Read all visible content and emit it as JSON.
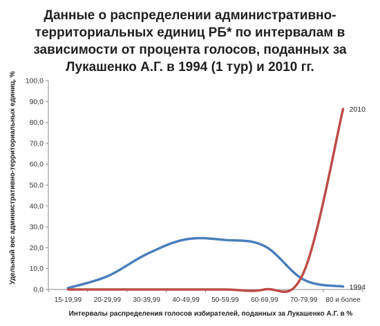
{
  "chart_data": {
    "type": "line",
    "title": [
      "Данные о распределении административно-",
      "территориальных единиц РБ* по интервалам в",
      "зависимости от процента голосов, поданных за",
      "Лукашенко А.Г. в 1994 (1 тур) и 2010 гг."
    ],
    "xlabel": "Интервалы распределения голосов избирателей, поданных за Лукашенко А.Г. в %",
    "ylabel": "Удельный вес административно-территориальных единиц, %",
    "categories": [
      "15-19,99",
      "20-29,99",
      "30-39,99",
      "40-49,99",
      "50-59,99",
      "60-69,99",
      "70-79,99",
      "80 и более"
    ],
    "y_ticks": [
      "0,0",
      "10,0",
      "20,0",
      "30,0",
      "40,0",
      "50,0",
      "60,0",
      "70,0",
      "80,0",
      "90,0",
      "100,0"
    ],
    "ylim": [
      0,
      100
    ],
    "grid": false,
    "series": [
      {
        "name": "1994",
        "color": "#4a7ebb",
        "values": [
          0.7,
          6.3,
          16.9,
          24.0,
          23.7,
          20.8,
          4.7,
          1.4
        ]
      },
      {
        "name": "2010",
        "color": "#be4b48",
        "values": [
          0.0,
          0.0,
          0.0,
          0.0,
          0.0,
          0.0,
          8.3,
          86.4
        ]
      }
    ]
  }
}
